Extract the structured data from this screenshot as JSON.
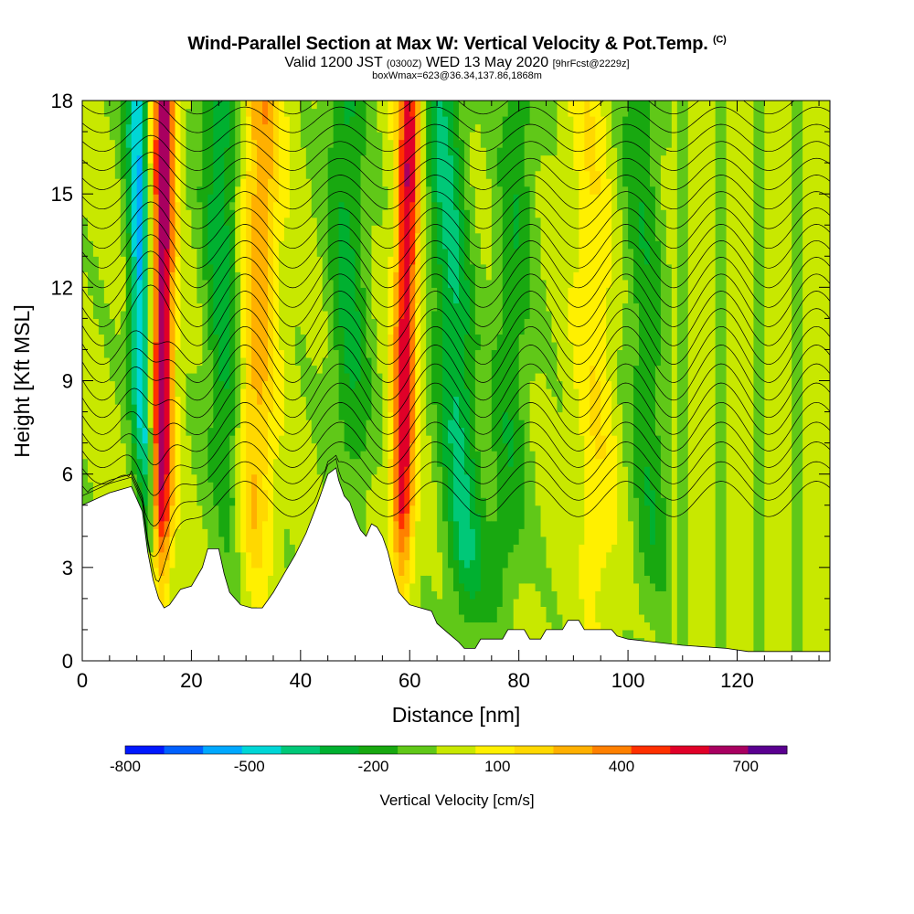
{
  "header": {
    "title": "Wind-Parallel Section at Max W: Vertical Velocity & Pot.Temp.",
    "copyright": "(C)",
    "valid_prefix": "Valid 1200 JST",
    "valid_utc": "(0300Z)",
    "valid_date": "WED 13 May 2020",
    "forecast": "[9hrFcst@2229z]",
    "box_info": "boxWmax=623@36.34,137.86,1868m"
  },
  "chart_data": {
    "type": "heatmap",
    "xlabel": "Distance [nm]",
    "ylabel": "Height [Kft MSL]",
    "xlim": [
      0,
      137
    ],
    "ylim": [
      0,
      18
    ],
    "x_ticks": [
      "0",
      "20",
      "40",
      "60",
      "80",
      "100",
      "120"
    ],
    "y_ticks": [
      "0",
      "3",
      "6",
      "9",
      "12",
      "15",
      "18"
    ],
    "contours": "potential temperature isentropes (black lines)",
    "colorbar": {
      "label": "Vertical Velocity [cm/s]",
      "tick_labels": [
        "-800",
        "-500",
        "-200",
        "100",
        "400",
        "700"
      ],
      "levels": [
        -800,
        -700,
        -600,
        -500,
        -400,
        -300,
        -200,
        -100,
        0,
        100,
        200,
        300,
        400,
        500,
        600,
        700,
        800
      ],
      "colors": [
        "#0018ff",
        "#0060ff",
        "#00a8ff",
        "#00d6d6",
        "#00c878",
        "#00b030",
        "#18a810",
        "#60c818",
        "#c8e800",
        "#fff000",
        "#ffd800",
        "#ffb000",
        "#ff8000",
        "#ff3000",
        "#e00028",
        "#a80060",
        "#5a0090"
      ]
    },
    "terrain_kft": [
      [
        0,
        5.0
      ],
      [
        5,
        5.4
      ],
      [
        9,
        5.6
      ],
      [
        11,
        4.8
      ],
      [
        12,
        3.5
      ],
      [
        13,
        2.6
      ],
      [
        14,
        2.0
      ],
      [
        15,
        1.7
      ],
      [
        16,
        1.8
      ],
      [
        18,
        2.3
      ],
      [
        20,
        2.4
      ],
      [
        21,
        2.7
      ],
      [
        22,
        3.0
      ],
      [
        23,
        3.6
      ],
      [
        25,
        3.6
      ],
      [
        26,
        2.8
      ],
      [
        27,
        2.2
      ],
      [
        29,
        1.8
      ],
      [
        31,
        1.7
      ],
      [
        33,
        1.7
      ],
      [
        35,
        2.2
      ],
      [
        37,
        2.8
      ],
      [
        39,
        3.4
      ],
      [
        41,
        4.1
      ],
      [
        43,
        5.0
      ],
      [
        45,
        6.0
      ],
      [
        46.5,
        6.2
      ],
      [
        47,
        5.8
      ],
      [
        48,
        5.3
      ],
      [
        49,
        5.1
      ],
      [
        50,
        4.6
      ],
      [
        51,
        4.2
      ],
      [
        52,
        4.0
      ],
      [
        53,
        4.4
      ],
      [
        54,
        4.3
      ],
      [
        55,
        4.0
      ],
      [
        56,
        3.5
      ],
      [
        57,
        2.8
      ],
      [
        58,
        2.2
      ],
      [
        60,
        1.8
      ],
      [
        62,
        1.7
      ],
      [
        64,
        1.6
      ],
      [
        65,
        1.2
      ],
      [
        67,
        0.9
      ],
      [
        69,
        0.6
      ],
      [
        70,
        0.4
      ],
      [
        72,
        0.4
      ],
      [
        73,
        0.7
      ],
      [
        77,
        0.7
      ],
      [
        78,
        1.0
      ],
      [
        81,
        1.0
      ],
      [
        82,
        0.7
      ],
      [
        84,
        0.7
      ],
      [
        85,
        1.0
      ],
      [
        88,
        1.0
      ],
      [
        89,
        1.3
      ],
      [
        91,
        1.3
      ],
      [
        92,
        1.0
      ],
      [
        97,
        1.0
      ],
      [
        98,
        0.8
      ],
      [
        100,
        0.7
      ],
      [
        105,
        0.6
      ],
      [
        110,
        0.5
      ],
      [
        118,
        0.4
      ],
      [
        122,
        0.3
      ],
      [
        130,
        0.3
      ],
      [
        137,
        0.3
      ]
    ],
    "updraft_bands": [
      {
        "x_top": 15,
        "x_bot": 14,
        "w_max": 750
      },
      {
        "x_top": 33,
        "x_bot": 30,
        "w_max": 350
      },
      {
        "x_top": 60,
        "x_bot": 58,
        "w_max": 650
      },
      {
        "x_top": 93,
        "x_bot": 95,
        "w_max": 150
      }
    ],
    "downdraft_bands": [
      {
        "x_top": 10,
        "x_bot": 12,
        "w_min": -550
      },
      {
        "x_top": 25,
        "x_bot": 28,
        "w_min": -300
      },
      {
        "x_top": 48,
        "x_bot": 50,
        "w_min": -250
      },
      {
        "x_top": 66,
        "x_bot": 71,
        "w_min": -350
      },
      {
        "x_top": 80,
        "x_bot": 77,
        "w_min": -200
      },
      {
        "x_top": 102,
        "x_bot": 105,
        "w_min": -200
      }
    ]
  }
}
